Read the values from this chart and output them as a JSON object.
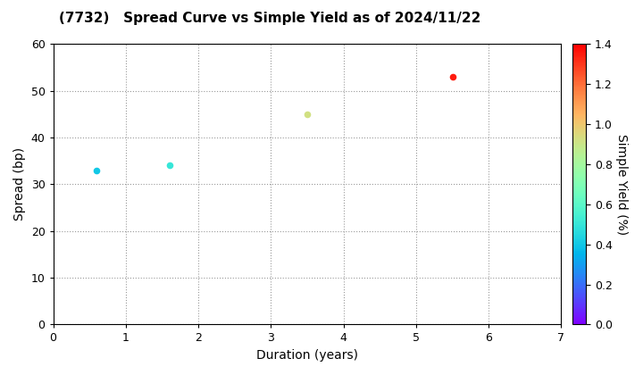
{
  "title": "(7732)   Spread Curve vs Simple Yield as of 2024/11/22",
  "xlabel": "Duration (years)",
  "ylabel": "Spread (bp)",
  "colorbar_label": "Simple Yield (%)",
  "xlim": [
    0,
    7
  ],
  "ylim": [
    0,
    60
  ],
  "xticks": [
    0,
    1,
    2,
    3,
    4,
    5,
    6,
    7
  ],
  "yticks": [
    0,
    10,
    20,
    30,
    40,
    50,
    60
  ],
  "colorbar_ticks": [
    0.0,
    0.2,
    0.4,
    0.6,
    0.8,
    1.0,
    1.2,
    1.4
  ],
  "colorbar_vmin": 0.0,
  "colorbar_vmax": 1.4,
  "points": [
    {
      "duration": 0.6,
      "spread": 33,
      "simple_yield": 0.4
    },
    {
      "duration": 1.6,
      "spread": 34,
      "simple_yield": 0.5
    },
    {
      "duration": 3.5,
      "spread": 45,
      "simple_yield": 0.92
    },
    {
      "duration": 5.5,
      "spread": 53,
      "simple_yield": 1.35
    }
  ],
  "marker_size": 30,
  "background_color": "#ffffff",
  "grid_color": "#999999",
  "grid_linestyle": ":",
  "title_fontsize": 11,
  "axis_label_fontsize": 10
}
